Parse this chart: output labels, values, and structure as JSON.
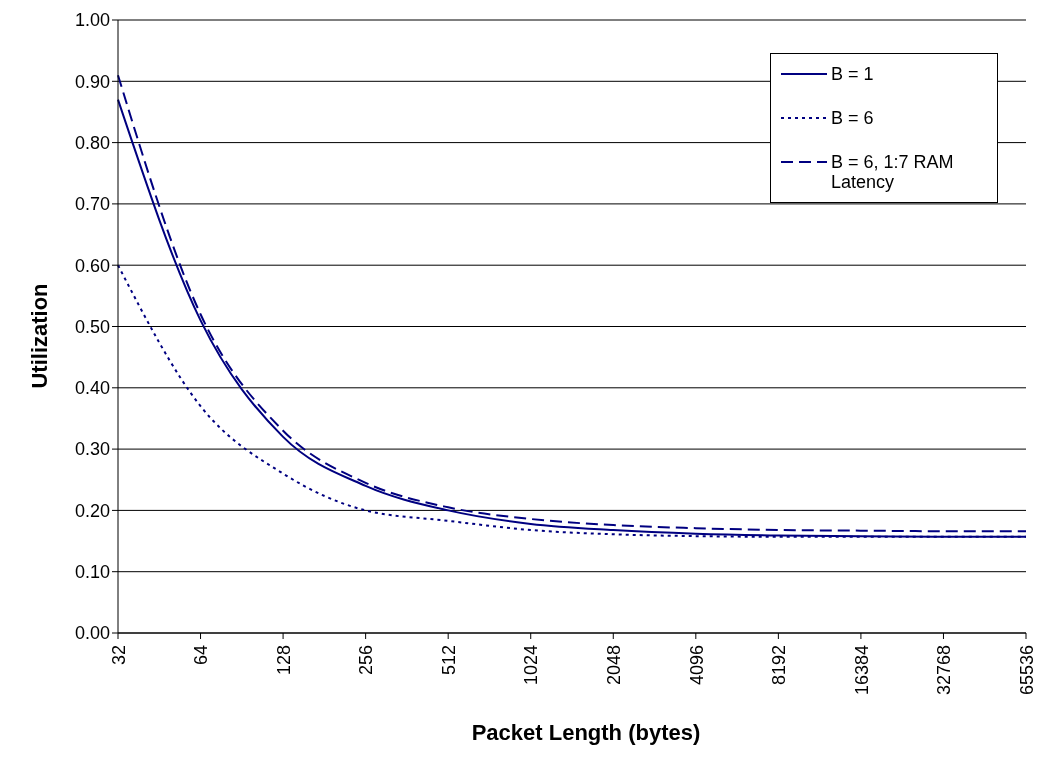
{
  "chart_data": {
    "type": "line",
    "xlabel": "Packet Length (bytes)",
    "ylabel": "Utilization",
    "categories": [
      "32",
      "64",
      "128",
      "256",
      "512",
      "1024",
      "2048",
      "4096",
      "8192",
      "16384",
      "32768",
      "65536"
    ],
    "series": [
      {
        "name": "B = 1",
        "color": "#000080",
        "line_style": "solid",
        "values": [
          0.87,
          0.51,
          0.32,
          0.24,
          0.2,
          0.178,
          0.168,
          0.162,
          0.159,
          0.158,
          0.157,
          0.157
        ]
      },
      {
        "name": "B = 6",
        "color": "#000080",
        "line_style": "dotted",
        "values": [
          0.6,
          0.37,
          0.26,
          0.2,
          0.183,
          0.168,
          0.161,
          0.158,
          0.157,
          0.157,
          0.157,
          0.157
        ]
      },
      {
        "name": "B = 6, 1:7 RAM Latency",
        "color": "#000080",
        "line_style": "dashed",
        "values": [
          0.91,
          0.52,
          0.33,
          0.245,
          0.205,
          0.186,
          0.176,
          0.171,
          0.168,
          0.167,
          0.166,
          0.166
        ]
      }
    ],
    "ylim": [
      0,
      1
    ],
    "yticks": [
      {
        "value": 0,
        "label": "0.00"
      },
      {
        "value": 0.1,
        "label": "0.10"
      },
      {
        "value": 0.2,
        "label": "0.20"
      },
      {
        "value": 0.3,
        "label": "0.30"
      },
      {
        "value": 0.4,
        "label": "0.40"
      },
      {
        "value": 0.5,
        "label": "0.50"
      },
      {
        "value": 0.6,
        "label": "0.60"
      },
      {
        "value": 0.7,
        "label": "0.70"
      },
      {
        "value": 0.8,
        "label": "0.80"
      },
      {
        "value": 0.9,
        "label": "0.90"
      },
      {
        "value": 1,
        "label": "1.00"
      }
    ],
    "grid": "y",
    "legend": "top right",
    "marker": "none"
  }
}
